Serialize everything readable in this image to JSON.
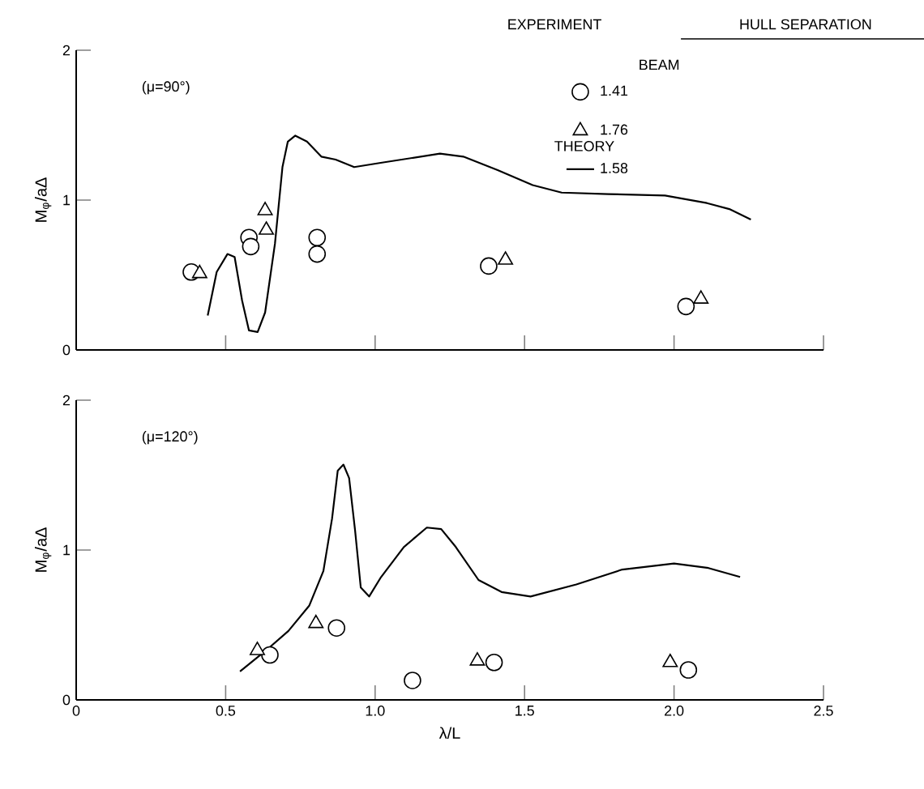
{
  "chart_data": [
    {
      "type": "scatter",
      "ylabel": "M$_{φ}$/aΔ",
      "xlim": [
        0,
        2.5
      ],
      "ylim": [
        0,
        2
      ],
      "xticks": [
        0,
        0.5,
        1,
        1.5,
        2,
        2.5
      ],
      "yticks": [
        0,
        1,
        2
      ],
      "tick_labels": "y",
      "legend": "top right",
      "annotations": [
        "(μ=90°)",
        "EXPERIMENT",
        "HULL SEPARATION",
        "BEAM",
        "THEORY"
      ],
      "series": [
        {
          "name": "1.41",
          "marker": "circle",
          "color": "#000000",
          "x": [
            0.385,
            0.578,
            0.584,
            0.806,
            0.806,
            1.38,
            2.04
          ],
          "values": [
            0.52,
            0.75,
            0.69,
            0.75,
            0.64,
            0.56,
            0.29
          ]
        },
        {
          "name": "1.76",
          "marker": "triangle",
          "color": "#000000",
          "x": [
            0.413,
            0.632,
            0.636,
            1.436,
            2.09
          ],
          "values": [
            0.51,
            0.93,
            0.8,
            0.6,
            0.34
          ]
        },
        {
          "name": "1.58",
          "type": "line",
          "color": "#000000",
          "x": [
            0.44,
            0.47,
            0.506,
            0.53,
            0.555,
            0.578,
            0.607,
            0.632,
            0.665,
            0.69,
            0.708,
            0.733,
            0.772,
            0.82,
            0.868,
            0.93,
            1.023,
            1.217,
            1.295,
            1.41,
            1.527,
            1.624,
            1.78,
            1.97,
            2.11,
            2.185,
            2.257
          ],
          "values": [
            0.23,
            0.52,
            0.64,
            0.62,
            0.33,
            0.13,
            0.12,
            0.25,
            0.71,
            1.22,
            1.39,
            1.43,
            1.39,
            1.29,
            1.27,
            1.22,
            1.25,
            1.31,
            1.29,
            1.2,
            1.1,
            1.05,
            1.04,
            1.03,
            0.98,
            0.94,
            0.87
          ]
        }
      ]
    },
    {
      "type": "scatter",
      "xlabel": "λ/L",
      "ylabel": "M$_{φ}$/aΔ",
      "xlim": [
        0,
        2.5
      ],
      "ylim": [
        0,
        2
      ],
      "xticks": [
        0,
        0.5,
        {
          "value": 1,
          "label": "1.0"
        },
        {
          "value": 1.5,
          "label": "1.5"
        },
        {
          "value": 2,
          "label": "2.0"
        },
        2.5
      ],
      "yticks": [
        0,
        1,
        2
      ],
      "annotations": [
        "(μ=120°)"
      ],
      "series": [
        {
          "marker": "circle",
          "color": "#000000",
          "x": [
            0.648,
            0.871,
            1.125,
            1.398,
            2.048
          ],
          "values": [
            0.3,
            0.48,
            0.13,
            0.25,
            0.2
          ]
        },
        {
          "marker": "triangle",
          "color": "#000000",
          "x": [
            0.606,
            0.802,
            1.342,
            1.987
          ],
          "values": [
            0.33,
            0.51,
            0.26,
            0.25
          ]
        },
        {
          "type": "line",
          "color": "#000000",
          "x": [
            0.548,
            0.635,
            0.71,
            0.78,
            0.827,
            0.856,
            0.875,
            0.894,
            0.913,
            0.933,
            0.952,
            0.98,
            1.02,
            1.096,
            1.173,
            1.221,
            1.27,
            1.346,
            1.423,
            1.52,
            1.673,
            1.827,
            2.0,
            2.115,
            2.221
          ],
          "values": [
            0.19,
            0.33,
            0.46,
            0.63,
            0.86,
            1.21,
            1.53,
            1.57,
            1.48,
            1.13,
            0.75,
            0.69,
            0.82,
            1.02,
            1.15,
            1.14,
            1.02,
            0.8,
            0.72,
            0.69,
            0.77,
            0.87,
            0.91,
            0.88,
            0.82
          ]
        }
      ]
    }
  ]
}
